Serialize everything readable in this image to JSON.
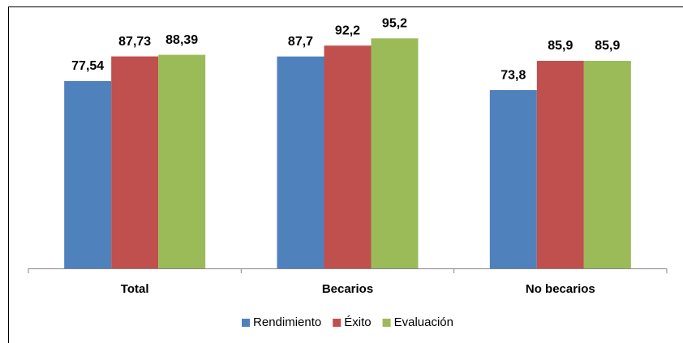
{
  "chart_data": {
    "type": "bar",
    "categories": [
      "Total",
      "Becarios",
      "No becarios"
    ],
    "series": [
      {
        "name": "Rendimiento",
        "color": "#4f81bd",
        "values": [
          77.54,
          87.7,
          73.8
        ],
        "value_labels": [
          "77,54",
          "87,7",
          "73,8"
        ]
      },
      {
        "name": "Éxito",
        "color": "#c0504d",
        "values": [
          87.73,
          92.2,
          85.9
        ],
        "value_labels": [
          "87,73",
          "92,2",
          "85,9"
        ]
      },
      {
        "name": "Evaluación",
        "color": "#9bbb59",
        "values": [
          88.39,
          95.2,
          85.9
        ],
        "value_labels": [
          "88,39",
          "95,2",
          "85,9"
        ]
      }
    ],
    "ylim": [
      0,
      100
    ],
    "legend": "bottom"
  }
}
